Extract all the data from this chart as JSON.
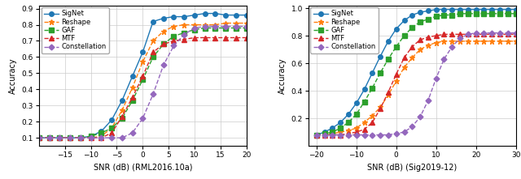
{
  "plot1": {
    "xlabel": "SNR (dB) (RML2016.10a)",
    "ylabel": "Accuracy",
    "xlim": [
      -20,
      20
    ],
    "ylim": [
      0.05,
      0.92
    ],
    "yticks": [
      0.1,
      0.2,
      0.3,
      0.4,
      0.5,
      0.6,
      0.7,
      0.8,
      0.9
    ],
    "xticks": [
      -15,
      -10,
      -5,
      0,
      5,
      10,
      15,
      20
    ],
    "snr": [
      -20,
      -18,
      -16,
      -14,
      -12,
      -10,
      -8,
      -6,
      -4,
      -2,
      0,
      2,
      4,
      6,
      8,
      10,
      12,
      14,
      16,
      18,
      20
    ],
    "SigNet": [
      0.1,
      0.1,
      0.1,
      0.1,
      0.1,
      0.11,
      0.14,
      0.21,
      0.33,
      0.48,
      0.63,
      0.82,
      0.84,
      0.85,
      0.85,
      0.86,
      0.87,
      0.87,
      0.86,
      0.86,
      0.86
    ],
    "Reshape": [
      0.1,
      0.1,
      0.1,
      0.1,
      0.1,
      0.1,
      0.11,
      0.16,
      0.27,
      0.41,
      0.57,
      0.7,
      0.76,
      0.79,
      0.8,
      0.8,
      0.8,
      0.8,
      0.81,
      0.81,
      0.81
    ],
    "GAF": [
      0.1,
      0.1,
      0.1,
      0.1,
      0.1,
      0.11,
      0.13,
      0.16,
      0.22,
      0.33,
      0.46,
      0.6,
      0.68,
      0.73,
      0.75,
      0.77,
      0.78,
      0.78,
      0.78,
      0.78,
      0.78
    ],
    "MTF": [
      0.1,
      0.1,
      0.1,
      0.1,
      0.1,
      0.1,
      0.1,
      0.13,
      0.23,
      0.35,
      0.48,
      0.63,
      0.68,
      0.7,
      0.71,
      0.72,
      0.72,
      0.72,
      0.72,
      0.72,
      0.72
    ],
    "Constellation": [
      0.1,
      0.1,
      0.1,
      0.1,
      0.1,
      0.1,
      0.1,
      0.1,
      0.1,
      0.13,
      0.22,
      0.37,
      0.55,
      0.67,
      0.74,
      0.78,
      0.79,
      0.79,
      0.79,
      0.79,
      0.79
    ]
  },
  "plot2": {
    "xlabel": "SNR (dB) (Sig2019-12)",
    "ylabel": "Accuracy",
    "xlim": [
      -22,
      30
    ],
    "ylim": [
      0.0,
      1.02
    ],
    "yticks": [
      0.2,
      0.4,
      0.6,
      0.8,
      1.0
    ],
    "xticks": [
      -20,
      -10,
      0,
      10,
      20,
      30
    ],
    "snr": [
      -20,
      -18,
      -16,
      -14,
      -12,
      -10,
      -8,
      -6,
      -4,
      -2,
      0,
      2,
      4,
      6,
      8,
      10,
      12,
      14,
      16,
      18,
      20,
      22,
      24,
      26,
      28,
      30
    ],
    "SigNet": [
      0.08,
      0.1,
      0.13,
      0.17,
      0.23,
      0.31,
      0.41,
      0.53,
      0.65,
      0.76,
      0.85,
      0.91,
      0.95,
      0.97,
      0.98,
      0.99,
      0.99,
      0.99,
      0.99,
      0.99,
      0.99,
      0.99,
      0.99,
      0.99,
      0.99,
      0.99
    ],
    "Reshape": [
      0.08,
      0.08,
      0.09,
      0.1,
      0.11,
      0.13,
      0.17,
      0.22,
      0.28,
      0.37,
      0.47,
      0.57,
      0.64,
      0.7,
      0.73,
      0.75,
      0.76,
      0.76,
      0.76,
      0.76,
      0.76,
      0.76,
      0.76,
      0.76,
      0.76,
      0.76
    ],
    "GAF": [
      0.08,
      0.09,
      0.1,
      0.13,
      0.17,
      0.23,
      0.32,
      0.42,
      0.53,
      0.63,
      0.72,
      0.8,
      0.86,
      0.9,
      0.92,
      0.94,
      0.95,
      0.95,
      0.96,
      0.96,
      0.96,
      0.96,
      0.96,
      0.96,
      0.96,
      0.96
    ],
    "MTF": [
      0.08,
      0.08,
      0.08,
      0.08,
      0.09,
      0.1,
      0.12,
      0.17,
      0.27,
      0.39,
      0.52,
      0.64,
      0.72,
      0.77,
      0.79,
      0.8,
      0.81,
      0.81,
      0.81,
      0.81,
      0.81,
      0.81,
      0.81,
      0.81,
      0.81,
      0.81
    ],
    "Constellation": [
      0.08,
      0.08,
      0.08,
      0.08,
      0.08,
      0.08,
      0.08,
      0.08,
      0.08,
      0.08,
      0.09,
      0.1,
      0.14,
      0.21,
      0.33,
      0.49,
      0.63,
      0.72,
      0.78,
      0.81,
      0.82,
      0.82,
      0.82,
      0.82,
      0.82,
      0.82
    ]
  },
  "series": {
    "SigNet": {
      "color": "#1f77b4",
      "marker": "o",
      "linestyle": "-"
    },
    "Reshape": {
      "color": "#ff7f0e",
      "marker": "*",
      "linestyle": "--"
    },
    "GAF": {
      "color": "#2ca02c",
      "marker": "s",
      "linestyle": "--"
    },
    "MTF": {
      "color": "#d62728",
      "marker": "^",
      "linestyle": "--"
    },
    "Constellation": {
      "color": "#9467bd",
      "marker": "D",
      "linestyle": "--"
    }
  },
  "marker_sizes": {
    "SigNet": 4,
    "Reshape": 5,
    "GAF": 4,
    "MTF": 4,
    "Constellation": 3.5
  },
  "figsize": [
    6.4,
    2.21
  ],
  "dpi": 100
}
